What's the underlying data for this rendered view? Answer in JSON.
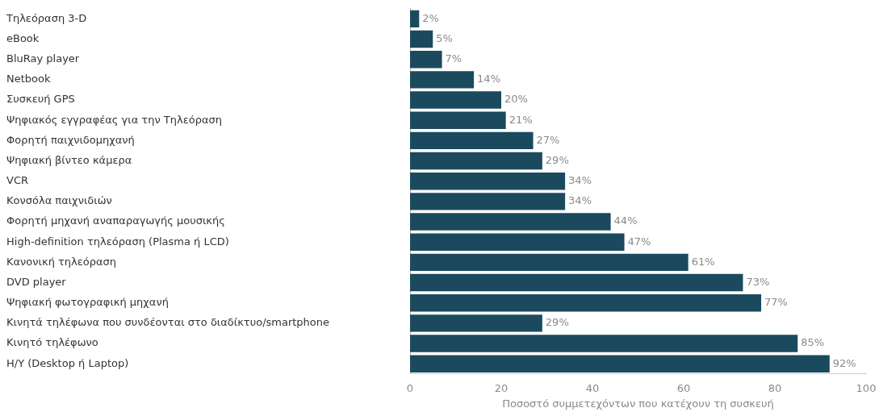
{
  "chart_data": {
    "type": "bar",
    "orientation": "horizontal",
    "xlabel": "Ποσοστό συμμετεχόντων που κατέχουν τη συσκευή",
    "categories": [
      "Τηλεόραση 3-D",
      "eBook",
      "BluRay player",
      "Netbook",
      "Συσκευή GPS",
      "Ψηφιακός εγγραφέας για την Τηλεόραση",
      "Φορητή παιχνιδομηχανή",
      "Ψηφιακή βίντεο κάμερα",
      "VCR",
      "Κονσόλα παιχνιδιών",
      "Φορητή μηχανή αναπαραγωγής μουσικής",
      "High-definition τηλεόραση (Plasma ή LCD)",
      "Κανονική τηλεόραση",
      "DVD player",
      "Ψηφιακή φωτογραφική μηχανή",
      "Κινητά τηλέφωνα που συνδέονται στο διαδίκτυο/smartphone",
      "Κινητό τηλέφωνο",
      "Η/Υ (Desktop ή Laptop)"
    ],
    "values": [
      2,
      5,
      7,
      14,
      20,
      21,
      27,
      29,
      34,
      34,
      44,
      47,
      61,
      73,
      77,
      29,
      85,
      92
    ],
    "value_labels": [
      "2%",
      "5%",
      "7%",
      "14%",
      "20%",
      "21%",
      "27%",
      "29%",
      "34%",
      "34%",
      "44%",
      "47%",
      "61%",
      "73%",
      "77%",
      "29%",
      "85%",
      "92%"
    ],
    "color": "#1b4a5e",
    "xlim": [
      0,
      100
    ],
    "xticks": [
      0,
      20,
      40,
      60,
      80,
      100
    ],
    "grid": false,
    "legend": false
  }
}
